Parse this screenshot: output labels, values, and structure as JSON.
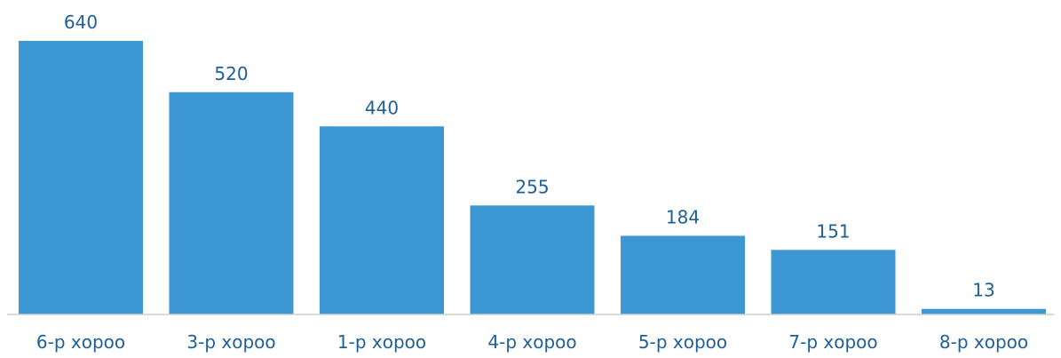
{
  "chart_data": {
    "type": "bar",
    "categories": [
      "6-р хороо",
      "3-р хороо",
      "1-р хороо",
      "4-р хороо",
      "5-р хороо",
      "7-р хороо",
      "8-р хороо"
    ],
    "values": [
      640,
      520,
      440,
      255,
      184,
      151,
      13
    ],
    "title": "",
    "xlabel": "",
    "ylabel": "",
    "ylim": [
      0,
      640
    ],
    "grid": false,
    "legend": "none",
    "bar_color": "#3c97d3",
    "label_color": "#1f5f96"
  }
}
